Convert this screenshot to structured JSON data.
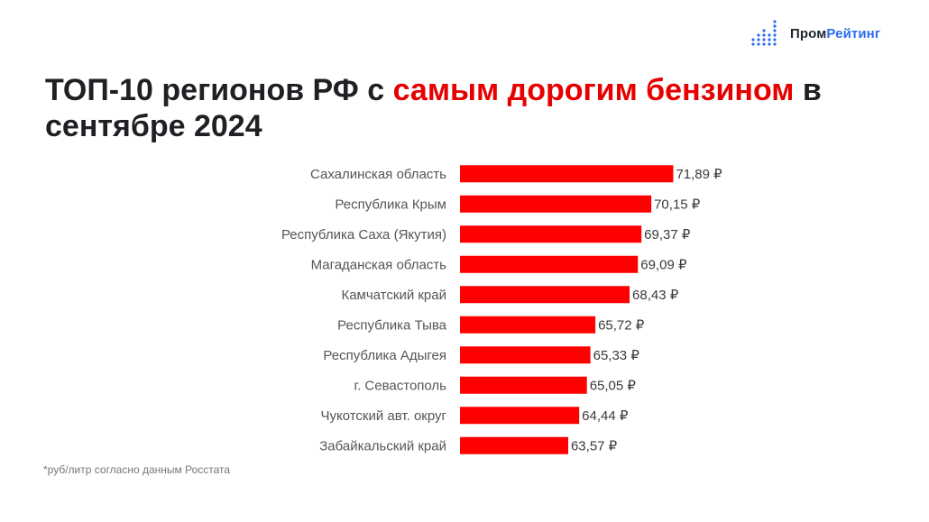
{
  "brand": {
    "name_part1": "Пром",
    "name_part2": "Рейтинг",
    "accent_color": "#2b6cf0",
    "logo_icon": "dot-matrix-bars-icon"
  },
  "title": {
    "part1": "ТОП-10 регионов РФ с ",
    "highlight": "самым дорогим бензином",
    "part2": " в сентябре 2024",
    "highlight_color": "#e60000"
  },
  "footnote": "*руб/литр согласно данным Росстата",
  "chart_data": {
    "type": "bar",
    "orientation": "horizontal",
    "categories": [
      "Сахалинская область",
      "Республика Крым",
      "Республика Саха (Якутия)",
      "Магаданская область",
      "Камчатский край",
      "Республика Тыва",
      "Республика Адыгея",
      "г. Севастополь",
      "Чукотский авт. округ",
      "Забайкальский край"
    ],
    "values": [
      71.89,
      70.15,
      69.37,
      69.09,
      68.43,
      65.72,
      65.33,
      65.05,
      64.44,
      63.57
    ],
    "value_labels": [
      "71,89 ₽",
      "70,15 ₽",
      "69,37 ₽",
      "69,09 ₽",
      "68,43 ₽",
      "65,72 ₽",
      "65,33 ₽",
      "65,05 ₽",
      "64,44 ₽",
      "63,57 ₽"
    ],
    "bar_color": "#ff0000",
    "xlim": [
      55,
      72
    ],
    "grid": false,
    "legend": "none",
    "xlabel": "",
    "ylabel": ""
  }
}
